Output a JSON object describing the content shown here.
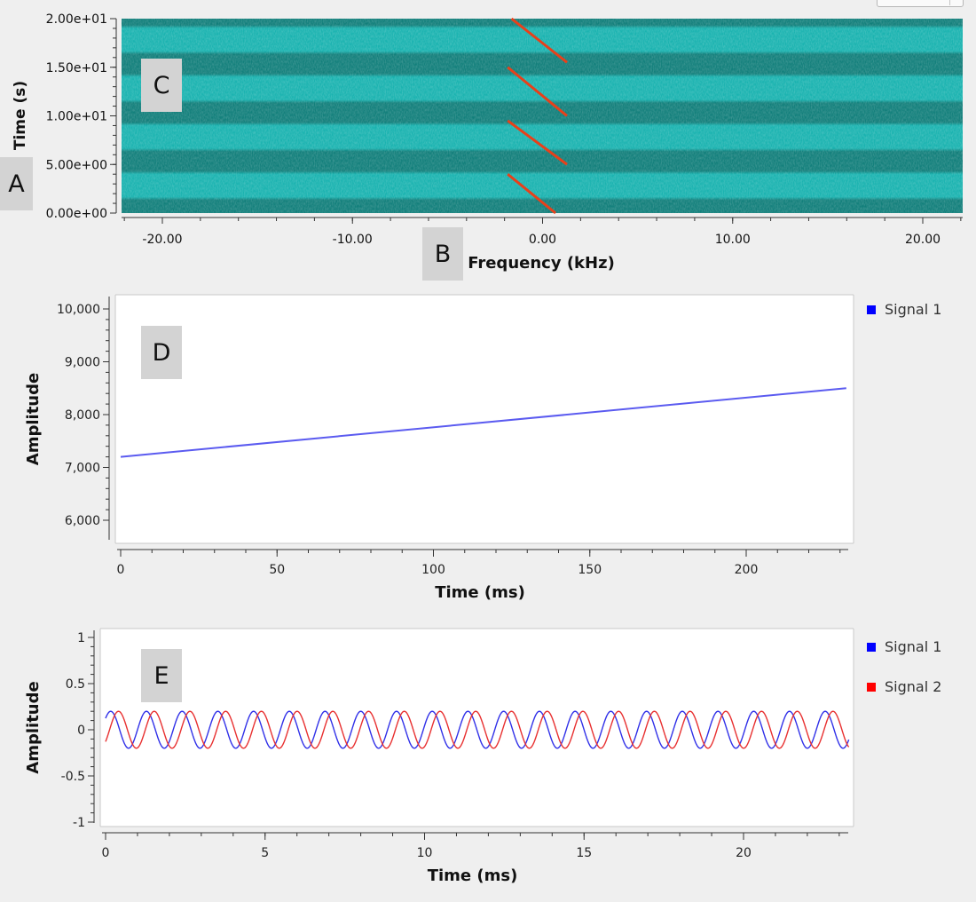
{
  "spectrogram": {
    "ylabel": "Time (s)",
    "xlabel": "Frequency (kHz)",
    "y_ticks": [
      "2.00e+01",
      "1.50e+01",
      "1.00e+01",
      "5.00e+00",
      "0.00e+00"
    ],
    "x_ticks": [
      "-20.00",
      "-10.00",
      "0.00",
      "10.00",
      "20.00"
    ]
  },
  "labels": {
    "a": "A",
    "b": "B",
    "c": "C",
    "d": "D",
    "e": "E"
  },
  "chart_data": [
    {
      "type": "heatmap",
      "title": "",
      "xlabel": "Frequency (kHz)",
      "ylabel": "Time (s)",
      "xlim": [
        -22,
        22
      ],
      "ylim": [
        0,
        20
      ],
      "x_ticks": [
        -20,
        -10,
        0,
        10,
        20
      ],
      "y_ticks": [
        0,
        5,
        10,
        15,
        20
      ],
      "chirps": [
        {
          "t_start": 0,
          "t_end": 4,
          "f_start": 1.0,
          "f_end": -1.5
        },
        {
          "t_start": 5,
          "t_end": 9.5,
          "f_start": 1.6,
          "f_end": -1.5
        },
        {
          "t_start": 10,
          "t_end": 15,
          "f_start": 1.6,
          "f_end": -1.5
        },
        {
          "t_start": 15.5,
          "t_end": 20,
          "f_start": 1.6,
          "f_end": -1.3
        }
      ],
      "colors": {
        "background": "#1ab3b0",
        "dark_band": "#127f7b",
        "chirp": "#e8401a"
      }
    },
    {
      "type": "line",
      "xlabel": "Time (ms)",
      "ylabel": "Amplitude",
      "xlim": [
        -2,
        233
      ],
      "ylim": [
        5800,
        10300
      ],
      "x_ticks": [
        "0",
        "50",
        "100",
        "150",
        "200"
      ],
      "y_ticks": [
        "6,000",
        "7,000",
        "8,000",
        "9,000",
        "10,000"
      ],
      "series": [
        {
          "name": "Signal 1",
          "color": "#0000ff",
          "x": [
            0,
            232
          ],
          "y": [
            7200,
            8500
          ]
        }
      ]
    },
    {
      "type": "line",
      "xlabel": "Time (ms)",
      "ylabel": "Amplitude",
      "xlim": [
        0,
        23.3
      ],
      "ylim": [
        -1,
        1
      ],
      "x_ticks": [
        "0",
        "5",
        "10",
        "15",
        "20"
      ],
      "y_ticks": [
        "1",
        "0.5",
        "0",
        "-0.5",
        "-1"
      ],
      "series": [
        {
          "name": "Signal 1",
          "color": "#0000ff",
          "amplitude": 0.2,
          "period_ms": 1.12,
          "phase_deg": 90
        },
        {
          "name": "Signal 2",
          "color": "#ff0000",
          "amplitude": 0.2,
          "period_ms": 1.12,
          "phase_deg": 0
        }
      ]
    }
  ]
}
